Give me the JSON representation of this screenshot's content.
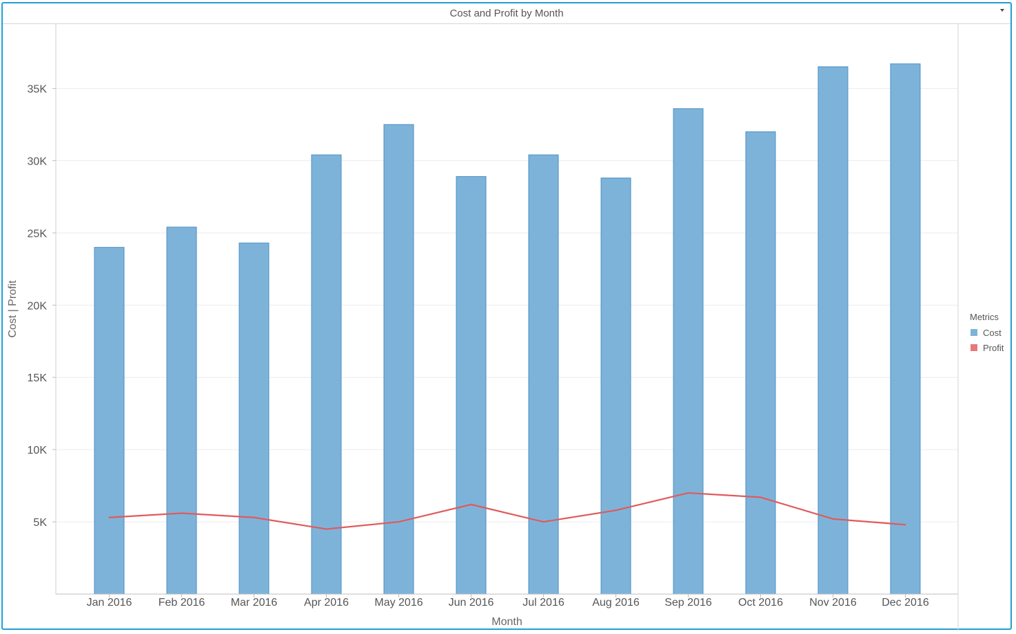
{
  "header": {
    "title": "Cost and Profit by Month"
  },
  "legend": {
    "title": "Metrics",
    "items": [
      {
        "label": "Cost",
        "color": "#7eb3d9"
      },
      {
        "label": "Profit",
        "color": "#e8787a"
      }
    ]
  },
  "chart_data": {
    "type": "bar",
    "title": "Cost and Profit by Month",
    "xlabel": "Month",
    "ylabel": "Cost  |  Profit",
    "ylim": [
      0,
      39500
    ],
    "yticks": [
      5000,
      10000,
      15000,
      20000,
      25000,
      30000,
      35000
    ],
    "ytick_labels": [
      "5K",
      "10K",
      "15K",
      "20K",
      "25K",
      "30K",
      "35K"
    ],
    "grid": true,
    "legend_position": "right",
    "categories": [
      "Jan 2016",
      "Feb 2016",
      "Mar 2016",
      "Apr 2016",
      "May 2016",
      "Jun 2016",
      "Jul 2016",
      "Aug 2016",
      "Sep 2016",
      "Oct 2016",
      "Nov 2016",
      "Dec 2016"
    ],
    "series": [
      {
        "name": "Cost",
        "type": "bar",
        "color": "#7eb3d9",
        "values": [
          24000,
          25400,
          24300,
          30400,
          32500,
          28900,
          30400,
          28800,
          33600,
          32000,
          36500,
          36700
        ]
      },
      {
        "name": "Profit",
        "type": "line",
        "color": "#e05a5c",
        "values": [
          5300,
          5600,
          5300,
          4500,
          5000,
          6200,
          5000,
          5800,
          7000,
          6700,
          5200,
          4800
        ]
      }
    ]
  }
}
